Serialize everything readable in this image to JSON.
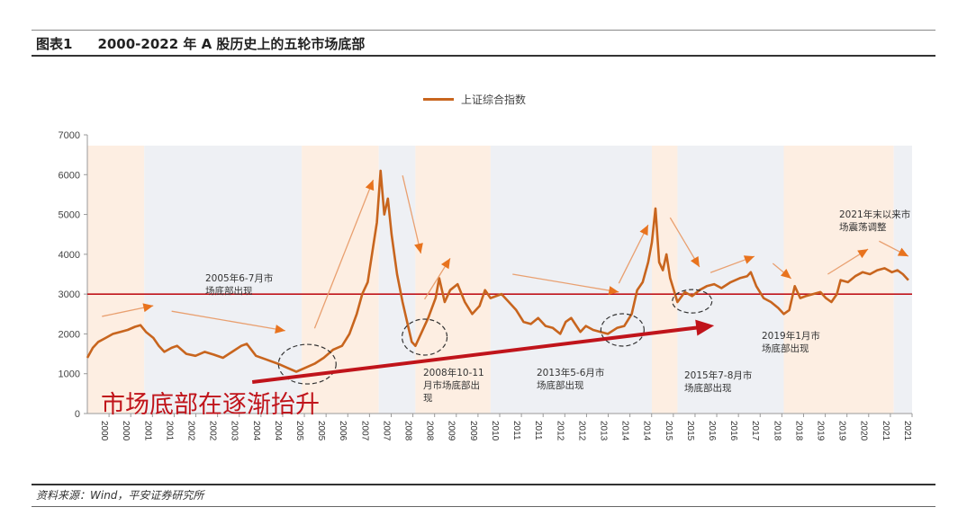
{
  "header": {
    "figure_no": "图表1",
    "title": "2000-2022 年 A 股历史上的五轮市场底部"
  },
  "footer": {
    "source": "资料来源：Wind，平安证券研究所"
  },
  "colors": {
    "line": "#c8651e",
    "peach": "#fdeee2",
    "gray": "#eef0f4",
    "red": "#c0141b",
    "arrow": "#e8731e"
  },
  "chart_data": {
    "type": "line",
    "title": "2000-2022 年 A 股历史上的五轮市场底部",
    "legend": [
      "上证综合指数"
    ],
    "legend_position": "top-center",
    "ylim": [
      0,
      7000
    ],
    "xlim": [
      2000.0,
      2022.5
    ],
    "yticks": [
      0,
      1000,
      2000,
      3000,
      4000,
      5000,
      6000,
      7000
    ],
    "xtick_labels": [
      "2000",
      "2000",
      "2001",
      "2001",
      "2002",
      "2002",
      "2003",
      "2004",
      "2004",
      "2005",
      "2005",
      "2006",
      "2007",
      "2007",
      "2008",
      "2008",
      "2009",
      "2009",
      "2010",
      "2011",
      "2011",
      "2012",
      "2012",
      "2013",
      "2014",
      "2014",
      "2015",
      "2015",
      "2016",
      "2016",
      "2017",
      "2018",
      "2018",
      "2019",
      "2019",
      "2020",
      "2021",
      "2021"
    ],
    "grid": false,
    "reference_line": 3000,
    "bands": [
      {
        "from": 2000.0,
        "to": 2001.55,
        "color": "peach"
      },
      {
        "from": 2001.55,
        "to": 2005.85,
        "color": "gray"
      },
      {
        "from": 2005.85,
        "to": 2007.95,
        "color": "peach"
      },
      {
        "from": 2007.95,
        "to": 2008.95,
        "color": "gray"
      },
      {
        "from": 2008.95,
        "to": 2011.0,
        "color": "peach"
      },
      {
        "from": 2011.0,
        "to": 2015.4,
        "color": "gray"
      },
      {
        "from": 2015.4,
        "to": 2016.1,
        "color": "peach"
      },
      {
        "from": 2016.1,
        "to": 2019.0,
        "color": "gray"
      },
      {
        "from": 2019.0,
        "to": 2022.0,
        "color": "peach"
      },
      {
        "from": 2022.0,
        "to": 2022.5,
        "color": "gray"
      }
    ],
    "series": [
      {
        "name": "上证综合指数",
        "x": [
          2000.0,
          2000.15,
          2000.3,
          2000.5,
          2000.7,
          2000.9,
          2001.1,
          2001.3,
          2001.45,
          2001.6,
          2001.8,
          2001.95,
          2002.1,
          2002.3,
          2002.45,
          2002.7,
          2002.95,
          2003.2,
          2003.45,
          2003.7,
          2003.95,
          2004.2,
          2004.35,
          2004.6,
          2004.9,
          2005.2,
          2005.45,
          2005.7,
          2005.95,
          2006.2,
          2006.45,
          2006.7,
          2006.95,
          2007.15,
          2007.35,
          2007.5,
          2007.65,
          2007.8,
          2007.9,
          2008.0,
          2008.1,
          2008.2,
          2008.3,
          2008.45,
          2008.6,
          2008.75,
          2008.85,
          2008.95,
          2009.1,
          2009.3,
          2009.5,
          2009.6,
          2009.75,
          2009.9,
          2010.1,
          2010.3,
          2010.5,
          2010.7,
          2010.85,
          2011.0,
          2011.3,
          2011.5,
          2011.7,
          2011.9,
          2012.1,
          2012.3,
          2012.5,
          2012.7,
          2012.9,
          2013.05,
          2013.2,
          2013.45,
          2013.6,
          2013.8,
          2014.0,
          2014.2,
          2014.45,
          2014.65,
          2014.85,
          2015.0,
          2015.15,
          2015.3,
          2015.4,
          2015.5,
          2015.6,
          2015.7,
          2015.8,
          2015.9,
          2016.0,
          2016.1,
          2016.3,
          2016.5,
          2016.7,
          2016.9,
          2017.1,
          2017.3,
          2017.55,
          2017.8,
          2018.0,
          2018.1,
          2018.25,
          2018.45,
          2018.65,
          2018.85,
          2019.0,
          2019.15,
          2019.3,
          2019.45,
          2019.6,
          2019.8,
          2020.0,
          2020.15,
          2020.3,
          2020.45,
          2020.55,
          2020.75,
          2020.95,
          2021.15,
          2021.35,
          2021.55,
          2021.75,
          2021.95,
          2022.1,
          2022.25,
          2022.4
        ],
        "y": [
          1400,
          1650,
          1800,
          1900,
          2000,
          2050,
          2100,
          2180,
          2220,
          2050,
          1900,
          1700,
          1550,
          1650,
          1700,
          1500,
          1450,
          1550,
          1480,
          1400,
          1550,
          1700,
          1750,
          1450,
          1350,
          1250,
          1150,
          1050,
          1150,
          1250,
          1400,
          1600,
          1700,
          2000,
          2500,
          3000,
          3300,
          4200,
          4800,
          6100,
          5000,
          5400,
          4500,
          3500,
          2800,
          2200,
          1800,
          1700,
          2000,
          2400,
          2900,
          3400,
          2800,
          3100,
          3250,
          2800,
          2500,
          2700,
          3100,
          2900,
          3000,
          2800,
          2600,
          2300,
          2250,
          2400,
          2200,
          2150,
          2000,
          2300,
          2400,
          2050,
          2200,
          2100,
          2050,
          2000,
          2150,
          2200,
          2500,
          3100,
          3300,
          3800,
          4300,
          5150,
          3800,
          3600,
          4000,
          3400,
          3100,
          2800,
          3050,
          2950,
          3100,
          3200,
          3250,
          3150,
          3300,
          3400,
          3450,
          3550,
          3200,
          2900,
          2800,
          2650,
          2500,
          2600,
          3200,
          2900,
          2950,
          3000,
          3050,
          2900,
          2800,
          3000,
          3350,
          3300,
          3450,
          3550,
          3500,
          3600,
          3650,
          3550,
          3600,
          3500,
          3350
        ]
      }
    ],
    "annotations": {
      "bottom_labels": [
        "2005年6-7月市场底部出现",
        "2008年10-11月市场底部出现",
        "2013年5-6月市场底部出现",
        "2015年7-8月市场底部出现",
        "2019年1月市场底部出现",
        "2021年末以来市场震荡调整"
      ],
      "headline": "市场底部在逐渐抬升",
      "trend_arrows": [
        [
          [
            2000.4,
            2440
          ],
          [
            2001.8,
            2710
          ]
        ],
        [
          [
            2002.3,
            2570
          ],
          [
            2005.4,
            2080
          ]
        ],
        [
          [
            2006.2,
            2140
          ],
          [
            2007.8,
            5870
          ]
        ],
        [
          [
            2008.6,
            5980
          ],
          [
            2009.1,
            4020
          ]
        ],
        [
          [
            2009.2,
            2870
          ],
          [
            2009.9,
            3900
          ]
        ],
        [
          [
            2011.6,
            3500
          ],
          [
            2014.5,
            3050
          ]
        ],
        [
          [
            2014.5,
            3270
          ],
          [
            2015.3,
            4740
          ]
        ],
        [
          [
            2015.9,
            4920
          ],
          [
            2016.7,
            3680
          ]
        ],
        [
          [
            2017.0,
            3540
          ],
          [
            2018.2,
            3950
          ]
        ],
        [
          [
            2018.7,
            3770
          ],
          [
            2019.2,
            3390
          ]
        ],
        [
          [
            2020.2,
            3500
          ],
          [
            2021.3,
            4130
          ]
        ],
        [
          [
            2021.6,
            4330
          ],
          [
            2022.4,
            3950
          ]
        ]
      ],
      "bottom_circles": [
        [
          2006.0,
          1240
        ],
        [
          2009.2,
          1920
        ],
        [
          2014.6,
          2100
        ],
        [
          2016.5,
          2820
        ]
      ],
      "rising_arrow": [
        [
          2004.5,
          790
        ],
        [
          2017.1,
          2210
        ]
      ]
    }
  }
}
